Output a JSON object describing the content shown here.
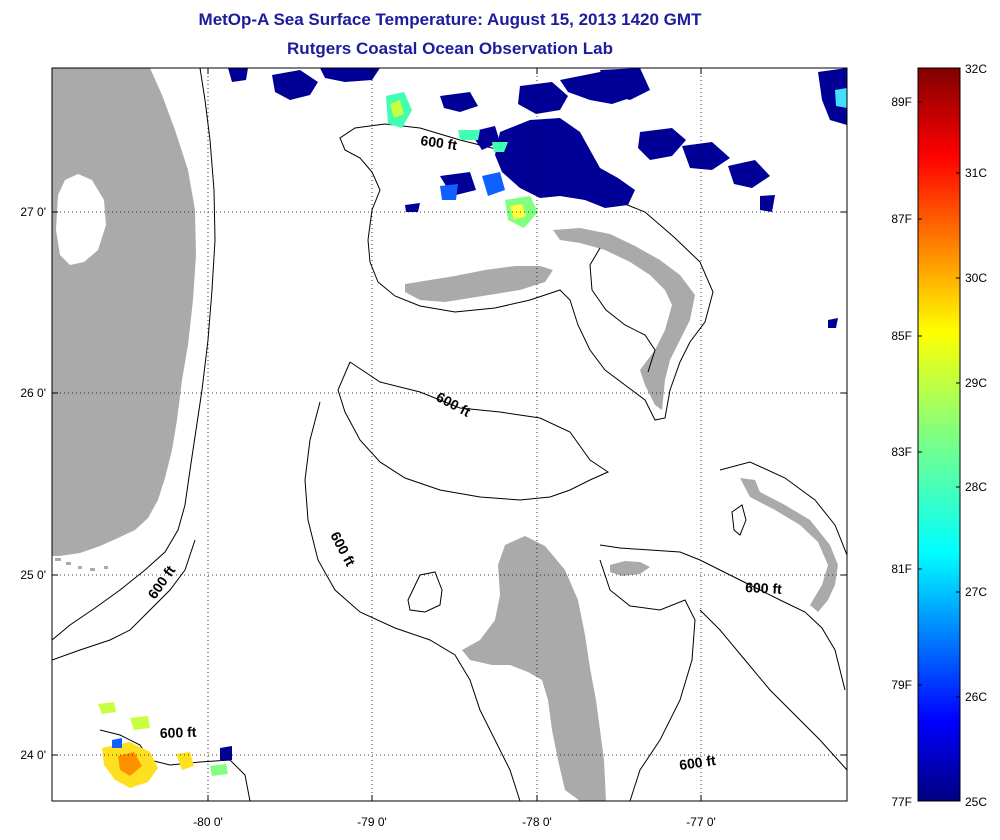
{
  "title_line1": "MetOp-A Sea Surface Temperature:  August 15, 2013 1420 GMT",
  "title_line2": "Rutgers Coastal Ocean Observation Lab",
  "x_ticks": [
    "-80 0'",
    "-79 0'",
    "-78 0'",
    "-77 0'"
  ],
  "y_ticks": [
    "27 0'",
    "26 0'",
    "25 0'",
    "24 0'"
  ],
  "colorbar": {
    "celsius": [
      "32C",
      "31C",
      "30C",
      "29C",
      "28C",
      "27C",
      "26C",
      "25C"
    ],
    "fahrenheit": [
      "89F",
      "87F",
      "85F",
      "83F",
      "81F",
      "79F",
      "77F"
    ]
  },
  "contour_label": "600 ft",
  "colors": {
    "title": "#1c1c9c",
    "land": "#aaaaaa",
    "sst_cold": "#000096",
    "sst_warm": "#800000"
  }
}
